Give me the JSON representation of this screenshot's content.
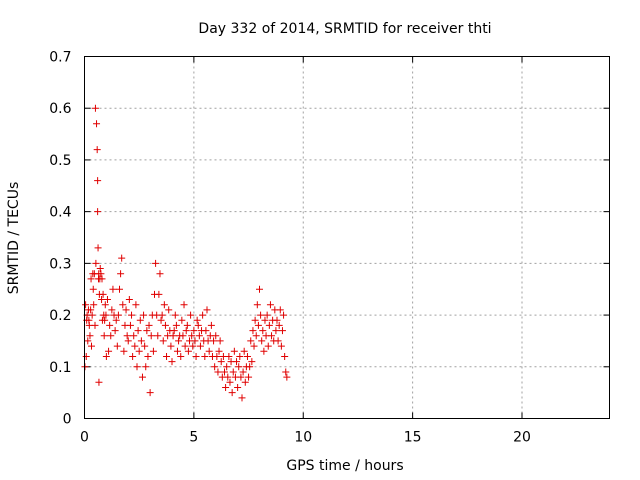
{
  "chart_data": {
    "type": "scatter",
    "title": "Day 332 of 2014, SRMTID for receiver thti",
    "xlabel": "GPS time / hours",
    "ylabel": "SRMTID / TECUs",
    "xlim": [
      0,
      24
    ],
    "ylim": [
      0,
      0.7
    ],
    "xticks": [
      0,
      5,
      10,
      15,
      20
    ],
    "yticks": [
      0,
      0.1,
      0.2,
      0.3,
      0.4,
      0.5,
      0.6,
      0.7
    ],
    "grid": true,
    "marker": "+",
    "color": "#e00000",
    "x": [
      0.02,
      0.05,
      0.08,
      0.1,
      0.12,
      0.15,
      0.18,
      0.2,
      0.22,
      0.25,
      0.28,
      0.3,
      0.32,
      0.35,
      0.38,
      0.4,
      0.42,
      0.45,
      0.48,
      0.5,
      0.52,
      0.55,
      0.58,
      0.6,
      0.6,
      0.62,
      0.64,
      0.65,
      0.66,
      0.68,
      0.7,
      0.72,
      0.75,
      0.78,
      0.8,
      0.82,
      0.85,
      0.88,
      0.9,
      0.92,
      0.95,
      0.98,
      1.0,
      1.05,
      1.1,
      1.15,
      1.2,
      1.25,
      1.3,
      1.35,
      1.4,
      1.45,
      1.5,
      1.55,
      1.6,
      1.65,
      1.7,
      1.75,
      1.8,
      1.85,
      1.9,
      1.95,
      2.0,
      2.05,
      2.1,
      2.15,
      2.2,
      2.25,
      2.3,
      2.35,
      2.4,
      2.45,
      2.5,
      2.55,
      2.6,
      2.65,
      2.7,
      2.75,
      2.8,
      2.85,
      2.9,
      2.95,
      3.0,
      3.05,
      3.1,
      3.15,
      3.2,
      3.25,
      3.3,
      3.35,
      3.4,
      3.45,
      3.5,
      3.55,
      3.6,
      3.65,
      3.7,
      3.75,
      3.8,
      3.85,
      3.9,
      3.95,
      4.0,
      4.05,
      4.1,
      4.15,
      4.2,
      4.25,
      4.3,
      4.35,
      4.4,
      4.45,
      4.5,
      4.55,
      4.6,
      4.65,
      4.7,
      4.75,
      4.8,
      4.85,
      4.9,
      4.95,
      5.0,
      5.05,
      5.1,
      5.15,
      5.2,
      5.25,
      5.3,
      5.35,
      5.4,
      5.45,
      5.5,
      5.55,
      5.6,
      5.65,
      5.7,
      5.75,
      5.8,
      5.85,
      5.9,
      5.95,
      6.0,
      6.05,
      6.1,
      6.15,
      6.2,
      6.25,
      6.3,
      6.35,
      6.4,
      6.45,
      6.5,
      6.55,
      6.6,
      6.65,
      6.7,
      6.75,
      6.8,
      6.85,
      6.9,
      6.95,
      7.0,
      7.05,
      7.1,
      7.15,
      7.2,
      7.25,
      7.3,
      7.35,
      7.4,
      7.45,
      7.5,
      7.55,
      7.6,
      7.65,
      7.7,
      7.75,
      7.8,
      7.85,
      7.9,
      7.95,
      8.0,
      8.05,
      8.1,
      8.15,
      8.2,
      8.25,
      8.3,
      8.35,
      8.4,
      8.45,
      8.5,
      8.55,
      8.6,
      8.65,
      8.7,
      8.75,
      8.8,
      8.85,
      8.9,
      8.95,
      9.0,
      9.05,
      9.1,
      9.15,
      9.2,
      9.25
    ],
    "y": [
      0.1,
      0.22,
      0.12,
      0.19,
      0.2,
      0.15,
      0.21,
      0.19,
      0.18,
      0.16,
      0.21,
      0.27,
      0.14,
      0.2,
      0.28,
      0.25,
      0.22,
      0.28,
      0.18,
      0.6,
      0.3,
      0.57,
      0.52,
      0.46,
      0.4,
      0.33,
      0.27,
      0.28,
      0.07,
      0.24,
      0.27,
      0.29,
      0.28,
      0.23,
      0.27,
      0.19,
      0.24,
      0.2,
      0.16,
      0.19,
      0.22,
      0.2,
      0.12,
      0.23,
      0.13,
      0.18,
      0.16,
      0.21,
      0.25,
      0.2,
      0.17,
      0.19,
      0.14,
      0.2,
      0.25,
      0.28,
      0.31,
      0.22,
      0.13,
      0.18,
      0.21,
      0.16,
      0.15,
      0.23,
      0.18,
      0.2,
      0.12,
      0.16,
      0.14,
      0.22,
      0.1,
      0.17,
      0.13,
      0.19,
      0.15,
      0.08,
      0.2,
      0.14,
      0.1,
      0.17,
      0.12,
      0.18,
      0.05,
      0.16,
      0.2,
      0.13,
      0.24,
      0.3,
      0.2,
      0.16,
      0.24,
      0.28,
      0.19,
      0.2,
      0.15,
      0.22,
      0.18,
      0.12,
      0.16,
      0.21,
      0.17,
      0.14,
      0.11,
      0.16,
      0.17,
      0.2,
      0.18,
      0.13,
      0.15,
      0.16,
      0.12,
      0.19,
      0.16,
      0.22,
      0.14,
      0.17,
      0.18,
      0.13,
      0.15,
      0.2,
      0.16,
      0.14,
      0.17,
      0.15,
      0.12,
      0.19,
      0.18,
      0.16,
      0.14,
      0.17,
      0.2,
      0.15,
      0.12,
      0.17,
      0.21,
      0.15,
      0.13,
      0.16,
      0.18,
      0.12,
      0.15,
      0.1,
      0.16,
      0.12,
      0.09,
      0.13,
      0.15,
      0.11,
      0.08,
      0.12,
      0.09,
      0.06,
      0.1,
      0.08,
      0.12,
      0.07,
      0.11,
      0.05,
      0.09,
      0.13,
      0.08,
      0.11,
      0.06,
      0.1,
      0.12,
      0.08,
      0.04,
      0.09,
      0.13,
      0.07,
      0.1,
      0.12,
      0.08,
      0.1,
      0.15,
      0.11,
      0.17,
      0.14,
      0.19,
      0.16,
      0.22,
      0.18,
      0.25,
      0.2,
      0.15,
      0.17,
      0.13,
      0.19,
      0.16,
      0.2,
      0.14,
      0.18,
      0.22,
      0.16,
      0.19,
      0.15,
      0.21,
      0.17,
      0.19,
      0.15,
      0.18,
      0.21,
      0.14,
      0.17,
      0.2,
      0.12,
      0.09,
      0.08
    ]
  }
}
